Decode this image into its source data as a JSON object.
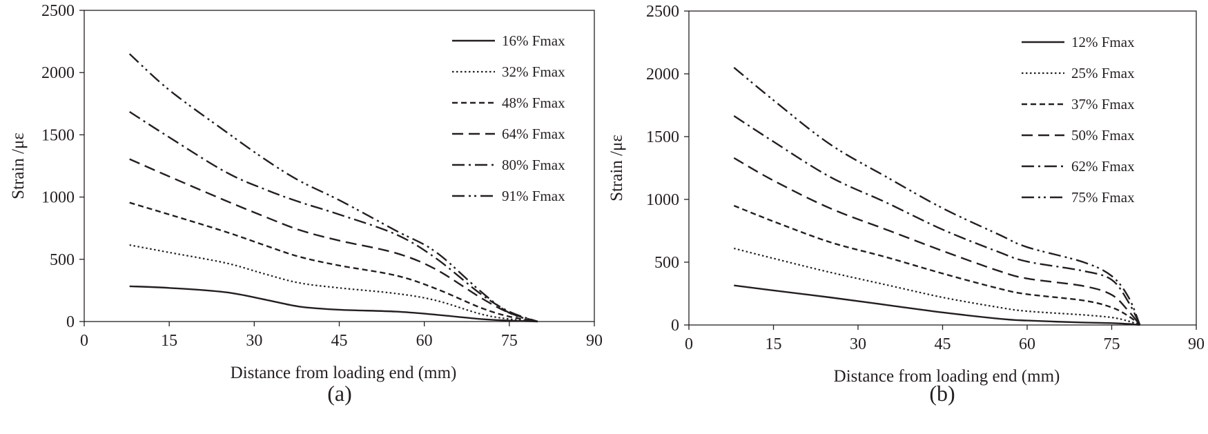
{
  "chart_data": [
    {
      "type": "line",
      "panel_label": "(a)",
      "xlabel": "Distance from loading end (mm)",
      "ylabel": "Strain /με",
      "xlim": [
        0,
        90
      ],
      "ylim": [
        0,
        2500
      ],
      "xticks": [
        0,
        15,
        30,
        45,
        60,
        75,
        90
      ],
      "yticks": [
        0,
        500,
        1000,
        1500,
        2000,
        2500
      ],
      "legend_position": "top-right",
      "series": [
        {
          "name": "16% Fmax",
          "dash": "solid",
          "x": [
            8,
            15,
            25,
            32,
            38,
            45,
            55,
            62,
            70,
            75,
            80
          ],
          "y": [
            283,
            270,
            235,
            175,
            120,
            95,
            80,
            55,
            20,
            8,
            0
          ]
        },
        {
          "name": "32% Fmax",
          "dash": "dotted",
          "x": [
            8,
            15,
            25,
            32,
            38,
            45,
            55,
            62,
            70,
            75,
            80
          ],
          "y": [
            615,
            555,
            470,
            380,
            310,
            270,
            225,
            170,
            60,
            20,
            0
          ]
        },
        {
          "name": "48% Fmax",
          "dash": "short-dash",
          "x": [
            8,
            15,
            25,
            32,
            38,
            45,
            55,
            62,
            70,
            75,
            80
          ],
          "y": [
            955,
            860,
            720,
            610,
            520,
            450,
            370,
            265,
            110,
            40,
            0
          ]
        },
        {
          "name": "64% Fmax",
          "dash": "long-dash",
          "x": [
            8,
            15,
            25,
            32,
            38,
            45,
            55,
            62,
            70,
            75,
            80
          ],
          "y": [
            1305,
            1165,
            970,
            840,
            735,
            650,
            550,
            420,
            190,
            70,
            0
          ]
        },
        {
          "name": "80% Fmax",
          "dash": "long-dash-dot",
          "x": [
            8,
            15,
            25,
            32,
            38,
            45,
            55,
            62,
            70,
            75,
            80
          ],
          "y": [
            1685,
            1480,
            1200,
            1060,
            960,
            860,
            700,
            510,
            220,
            80,
            0
          ]
        },
        {
          "name": "91% Fmax",
          "dash": "long-dash-dot-dot",
          "x": [
            8,
            15,
            25,
            32,
            38,
            45,
            55,
            62,
            70,
            75,
            80
          ],
          "y": [
            2150,
            1860,
            1525,
            1300,
            1130,
            975,
            730,
            560,
            240,
            70,
            0
          ]
        }
      ]
    },
    {
      "type": "line",
      "panel_label": "(b)",
      "xlabel": "Distance from loading end (mm)",
      "ylabel": "Strain /με",
      "xlim": [
        0,
        90
      ],
      "ylim": [
        0,
        2500
      ],
      "xticks": [
        0,
        15,
        30,
        45,
        60,
        75,
        90
      ],
      "yticks": [
        0,
        500,
        1000,
        1500,
        2000,
        2500
      ],
      "legend_position": "top-right",
      "series": [
        {
          "name": "12% Fmax",
          "dash": "solid",
          "x": [
            8,
            15,
            25,
            35,
            45,
            55,
            60,
            70,
            75,
            78,
            80
          ],
          "y": [
            315,
            275,
            220,
            160,
            100,
            50,
            35,
            20,
            15,
            8,
            0
          ]
        },
        {
          "name": "25% Fmax",
          "dash": "dotted",
          "x": [
            8,
            15,
            25,
            35,
            45,
            55,
            60,
            70,
            75,
            78,
            80
          ],
          "y": [
            610,
            530,
            420,
            320,
            220,
            140,
            110,
            80,
            60,
            30,
            0
          ]
        },
        {
          "name": "37% Fmax",
          "dash": "short-dash",
          "x": [
            8,
            15,
            25,
            35,
            45,
            55,
            60,
            70,
            75,
            78,
            80
          ],
          "y": [
            950,
            825,
            660,
            540,
            410,
            290,
            245,
            195,
            140,
            70,
            0
          ]
        },
        {
          "name": "50% Fmax",
          "dash": "long-dash",
          "x": [
            8,
            15,
            25,
            35,
            45,
            55,
            60,
            70,
            75,
            78,
            80
          ],
          "y": [
            1330,
            1150,
            930,
            760,
            590,
            430,
            370,
            310,
            240,
            110,
            0
          ]
        },
        {
          "name": "62% Fmax",
          "dash": "long-dash-dot",
          "x": [
            8,
            15,
            25,
            35,
            45,
            55,
            60,
            70,
            75,
            78,
            80
          ],
          "y": [
            1665,
            1460,
            1180,
            975,
            760,
            580,
            505,
            430,
            360,
            180,
            0
          ]
        },
        {
          "name": "75% Fmax",
          "dash": "long-dash-dot-dot",
          "x": [
            8,
            15,
            25,
            35,
            45,
            55,
            60,
            70,
            75,
            78,
            80
          ],
          "y": [
            2050,
            1790,
            1440,
            1180,
            930,
            720,
            620,
            500,
            390,
            220,
            0
          ]
        }
      ]
    }
  ]
}
